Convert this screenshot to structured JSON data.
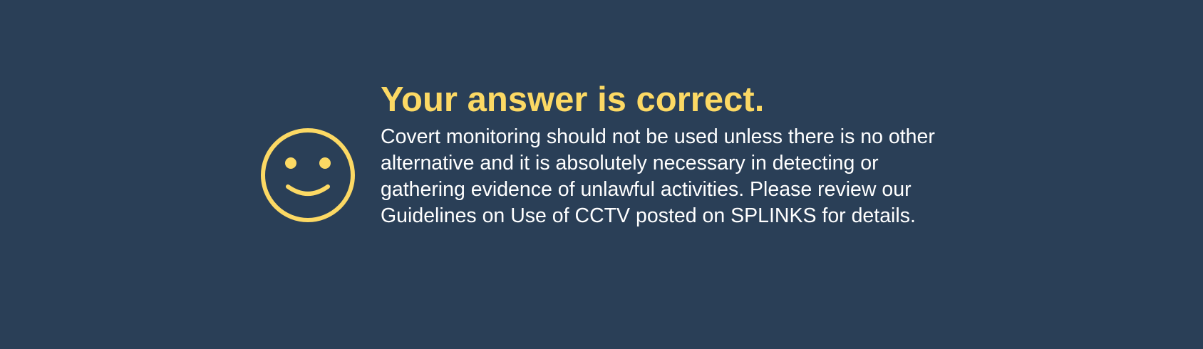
{
  "feedback": {
    "icon": "smiley-face-icon",
    "accent_color": "#fcd964",
    "background_color": "#2a3f57",
    "title": "Your answer is correct.",
    "message": "Covert monitoring should not be used unless there is no other alternative and it is absolutely necessary in detecting or gathering evidence of unlawful activities. Please review our Guidelines on Use of CCTV posted on SPLINKS for details."
  }
}
